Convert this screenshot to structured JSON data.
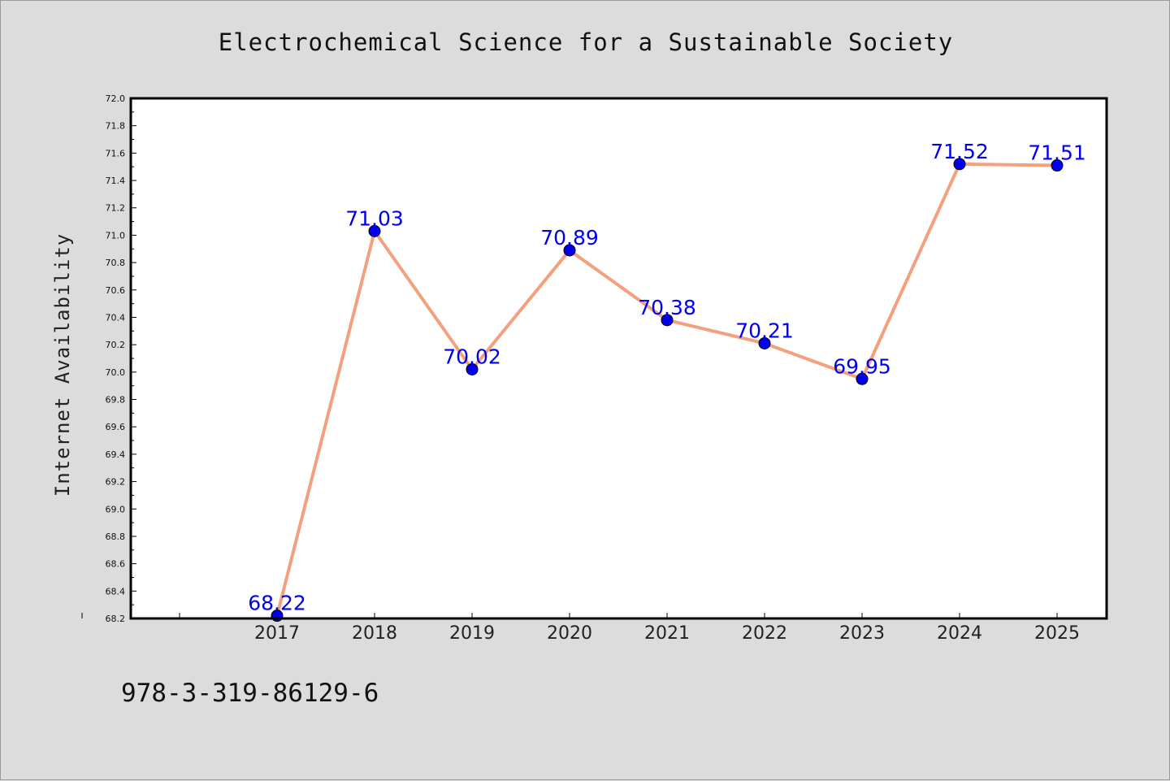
{
  "figure": {
    "footer_text": "978-3-319-86129-6"
  },
  "chart_data": {
    "type": "line",
    "title": "Electrochemical Science for a Sustainable Society",
    "xlabel": "",
    "ylabel": "Internet Availability",
    "categories": [
      "2017",
      "2018",
      "2019",
      "2020",
      "2021",
      "2022",
      "2023",
      "2024",
      "2025"
    ],
    "series": [
      {
        "values": [
          68.22,
          71.03,
          70.02,
          70.89,
          70.38,
          70.21,
          69.95,
          71.52,
          71.51
        ],
        "line_color": "#f4a07e",
        "marker_color": "#0000ee",
        "label_color": "#0000ee"
      }
    ],
    "ylim": [
      68.2,
      72.0
    ],
    "y_ticks": [
      "68.2",
      "68.4",
      "68.6",
      "68.8",
      "69.0",
      "69.2",
      "69.4",
      "69.6",
      "69.8",
      "70.0",
      "70.2",
      "70.4",
      "70.6",
      "70.8",
      "71.0",
      "71.2",
      "71.4",
      "71.6",
      "71.8",
      "72.0"
    ],
    "grid": false,
    "legend": "none",
    "data_labels": true,
    "plot_background": "#ffffff"
  }
}
